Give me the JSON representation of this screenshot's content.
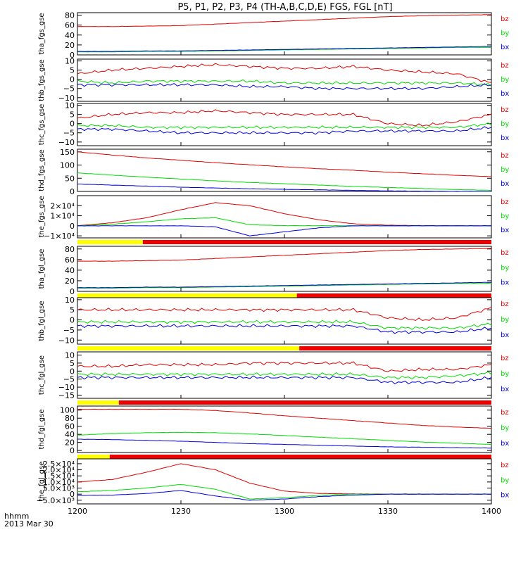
{
  "figure": {
    "title": "P5, P1, P2, P3, P4 (TH-A,B,C,D,E) FGS, FGL [nT]",
    "footer_label": "hhmm",
    "footer_date": "2013 Mar 30",
    "x_ticks": [
      "1200",
      "1230",
      "1300",
      "1330",
      "1400"
    ],
    "colors": {
      "bz": "#e00000",
      "by": "#00dd00",
      "bx": "#0000dd",
      "bar_yellow": "#ffff00",
      "bar_red": "#ee0000"
    }
  },
  "chart_data": [
    {
      "type": "line",
      "ylabel": "tha_fgs_gse",
      "yticks": [
        "80",
        "60",
        "40",
        "20",
        "0"
      ],
      "ylim": [
        0,
        85
      ],
      "x": [
        0,
        10,
        20,
        30,
        40,
        50,
        60,
        70,
        80,
        90,
        100,
        110,
        120
      ],
      "series": [
        {
          "name": "bz",
          "values": [
            57,
            57,
            58,
            59,
            62,
            65,
            68,
            71,
            74,
            77,
            79,
            80,
            81
          ]
        },
        {
          "name": "by",
          "values": [
            6,
            6,
            7,
            7,
            8,
            9,
            10,
            11,
            12,
            13,
            14,
            15,
            15
          ]
        },
        {
          "name": "bx",
          "values": [
            7,
            7,
            8,
            8,
            9,
            10,
            11,
            12,
            13,
            14,
            15,
            16,
            17
          ]
        }
      ],
      "legend": [
        "bz",
        "by",
        "bx"
      ]
    },
    {
      "type": "line",
      "ylabel": "thb_fgs_gse",
      "yticks": [
        "10",
        "5",
        "0",
        "−5",
        "−10"
      ],
      "ylim": [
        -12,
        11
      ],
      "x": [
        0,
        10,
        20,
        30,
        40,
        50,
        60,
        70,
        80,
        90,
        100,
        110,
        120
      ],
      "series": [
        {
          "name": "bz",
          "values": [
            3,
            5,
            6,
            7,
            8,
            7,
            6,
            6,
            7,
            5,
            4,
            3,
            -2
          ]
        },
        {
          "name": "by",
          "values": [
            -1,
            -2,
            -1,
            -1,
            -1,
            -1,
            -2,
            -2,
            -2,
            -2,
            -2,
            -2,
            -3
          ]
        },
        {
          "name": "bx",
          "values": [
            -3,
            -3,
            -3,
            -3,
            -3,
            -4,
            -4,
            -5,
            -5,
            -5,
            -5,
            -4,
            -3
          ]
        }
      ],
      "legend": [
        "bz",
        "by",
        "bx"
      ]
    },
    {
      "type": "line",
      "ylabel": "thc_fgs_gse",
      "yticks": [
        "10",
        "5",
        "0",
        "−5",
        "−10"
      ],
      "ylim": [
        -12,
        11
      ],
      "x": [
        0,
        10,
        20,
        30,
        40,
        50,
        60,
        70,
        80,
        90,
        100,
        110,
        120
      ],
      "series": [
        {
          "name": "bz",
          "values": [
            3,
            5,
            6,
            6,
            7,
            6,
            5,
            5,
            5,
            0,
            -1,
            1,
            5
          ]
        },
        {
          "name": "by",
          "values": [
            -1,
            -1,
            -2,
            -2,
            -2,
            -2,
            -2,
            -2,
            -2,
            -2,
            -2,
            -2,
            0
          ]
        },
        {
          "name": "bx",
          "values": [
            -3,
            -3,
            -4,
            -5,
            -5,
            -5,
            -5,
            -5,
            -4,
            -4,
            -4,
            -4,
            -2
          ]
        }
      ],
      "legend": [
        "bz",
        "by",
        "bx"
      ]
    },
    {
      "type": "line",
      "ylabel": "thd_fgs_gse",
      "yticks": [
        "150",
        "100",
        "50",
        "0"
      ],
      "ylim": [
        0,
        160
      ],
      "x": [
        0,
        10,
        20,
        30,
        40,
        50,
        60,
        70,
        80,
        90,
        100,
        110,
        120
      ],
      "series": [
        {
          "name": "bz",
          "values": [
            150,
            138,
            127,
            118,
            109,
            101,
            93,
            86,
            80,
            73,
            67,
            61,
            56
          ]
        },
        {
          "name": "by",
          "values": [
            70,
            62,
            54,
            47,
            40,
            34,
            29,
            24,
            19,
            15,
            11,
            7,
            4
          ]
        },
        {
          "name": "bx",
          "values": [
            28,
            24,
            20,
            16,
            13,
            10,
            8,
            6,
            4,
            2,
            1,
            0,
            -1
          ]
        }
      ],
      "legend": [
        "bz",
        "by",
        "bx"
      ]
    },
    {
      "type": "line",
      "ylabel": "the_fgs_gse",
      "yticks": [
        "2×10⁴",
        "1×10⁴",
        "0",
        "−1×10⁴"
      ],
      "ylim": [
        -12000,
        30000
      ],
      "x": [
        0,
        10,
        20,
        30,
        40,
        50,
        60,
        70,
        80,
        90,
        100,
        110,
        120
      ],
      "series": [
        {
          "name": "bz",
          "values": [
            100,
            3000,
            8000,
            16000,
            23000,
            20000,
            12000,
            6000,
            2000,
            600,
            200,
            100,
            50
          ]
        },
        {
          "name": "by",
          "values": [
            0,
            1500,
            4000,
            7000,
            8000,
            1000,
            200,
            100,
            100,
            50,
            50,
            50,
            50
          ]
        },
        {
          "name": "bx",
          "values": [
            0,
            0,
            0,
            0,
            -1000,
            -10000,
            -6000,
            -2000,
            0,
            0,
            0,
            0,
            0
          ]
        }
      ],
      "legend": [
        "bz",
        "by",
        "bx"
      ],
      "status_bar": {
        "yellow_until": 0.158
      }
    },
    {
      "type": "line",
      "ylabel": "tha_fgl_gse",
      "yticks": [
        "80",
        "60",
        "40",
        "20",
        "0"
      ],
      "ylim": [
        0,
        85
      ],
      "x": [
        0,
        10,
        20,
        30,
        40,
        50,
        60,
        70,
        80,
        90,
        100,
        110,
        120
      ],
      "series": [
        {
          "name": "bz",
          "values": [
            57,
            57,
            58,
            59,
            62,
            65,
            68,
            71,
            74,
            77,
            79,
            80,
            81
          ]
        },
        {
          "name": "by",
          "values": [
            6,
            6,
            7,
            7,
            8,
            9,
            10,
            11,
            12,
            13,
            14,
            15,
            15
          ]
        },
        {
          "name": "bx",
          "values": [
            7,
            7,
            8,
            8,
            9,
            10,
            11,
            12,
            13,
            14,
            15,
            16,
            17
          ]
        }
      ],
      "legend": [
        "bz",
        "by",
        "bx"
      ],
      "status_bar": {
        "yellow_until": 0.53
      }
    },
    {
      "type": "line",
      "ylabel": "thb_fgl_gse",
      "yticks": [
        "10",
        "5",
        "0",
        "−5",
        "−10"
      ],
      "ylim": [
        -12,
        11
      ],
      "x": [
        0,
        10,
        20,
        30,
        40,
        50,
        60,
        70,
        80,
        90,
        100,
        110,
        120
      ],
      "series": [
        {
          "name": "bz",
          "values": [
            5,
            5,
            5,
            5,
            5,
            5,
            5,
            5,
            5,
            1,
            0,
            1,
            6
          ]
        },
        {
          "name": "by",
          "values": [
            -1,
            -1,
            -1,
            -1,
            -1,
            -1,
            -1,
            -1,
            -1,
            -4,
            -4,
            -4,
            -2
          ]
        },
        {
          "name": "bx",
          "values": [
            -3,
            -3,
            -3,
            -3,
            -3,
            -3,
            -3,
            -3,
            -3,
            -6,
            -6,
            -6,
            -4
          ]
        }
      ],
      "legend": [
        "bz",
        "by",
        "bx"
      ],
      "status_bar": {
        "yellow_until": 0.536
      }
    },
    {
      "type": "line",
      "ylabel": "thc_fgl_gse",
      "yticks": [
        "10",
        "5",
        "0",
        "−5",
        "−10",
        "−15"
      ],
      "ylim": [
        -17,
        12
      ],
      "x": [
        0,
        10,
        20,
        30,
        40,
        50,
        60,
        70,
        80,
        90,
        100,
        110,
        120
      ],
      "series": [
        {
          "name": "bz",
          "values": [
            3,
            3,
            4,
            4,
            4,
            5,
            5,
            5,
            5,
            0,
            1,
            1,
            4
          ]
        },
        {
          "name": "by",
          "values": [
            -2,
            -2,
            -2,
            -2,
            -2,
            -2,
            -2,
            -2,
            -2,
            -4,
            -4,
            -3,
            -1
          ]
        },
        {
          "name": "bx",
          "values": [
            -4,
            -4,
            -4,
            -4,
            -4,
            -4,
            -4,
            -4,
            -4,
            -7,
            -7,
            -7,
            -4
          ]
        }
      ],
      "legend": [
        "bz",
        "by",
        "bx"
      ],
      "status_bar": {
        "yellow_until": 0.1
      }
    },
    {
      "type": "line",
      "ylabel": "thd_fgl_gse",
      "yticks": [
        "100",
        "80",
        "60",
        "40",
        "20",
        "0"
      ],
      "ylim": [
        -5,
        110
      ],
      "x": [
        0,
        10,
        20,
        30,
        40,
        50,
        60,
        70,
        80,
        90,
        100,
        110,
        120
      ],
      "series": [
        {
          "name": "bz",
          "values": [
            102,
            102,
            102,
            102,
            99,
            93,
            86,
            80,
            74,
            68,
            62,
            58,
            55
          ]
        },
        {
          "name": "by",
          "values": [
            38,
            42,
            44,
            45,
            44,
            41,
            37,
            33,
            29,
            25,
            21,
            18,
            15
          ]
        },
        {
          "name": "bx",
          "values": [
            28,
            27,
            25,
            23,
            20,
            17,
            15,
            13,
            11,
            9,
            8,
            7,
            6
          ]
        }
      ],
      "legend": [
        "bz",
        "by",
        "bx"
      ],
      "status_bar": {
        "yellow_until": 0.078
      }
    },
    {
      "type": "line",
      "ylabel": "the_fgl_gse",
      "yticks": [
        "2.5×10⁴",
        "2.0×10⁴",
        "1.5×10⁴",
        "1.0×10⁴",
        "5.0×10³",
        "0",
        "−5.0×10³"
      ],
      "ylim": [
        -8000,
        29000
      ],
      "x": [
        0,
        10,
        20,
        30,
        40,
        50,
        60,
        70,
        80,
        90,
        100,
        110,
        120
      ],
      "series": [
        {
          "name": "bz",
          "values": [
            10000,
            12000,
            18000,
            25000,
            20000,
            9000,
            2500,
            600,
            200,
            100,
            50,
            50,
            50
          ]
        },
        {
          "name": "by",
          "values": [
            2000,
            3000,
            5000,
            8000,
            4000,
            -4000,
            -3000,
            -1000,
            0,
            0,
            0,
            0,
            0
          ]
        },
        {
          "name": "bx",
          "values": [
            -1000,
            -800,
            500,
            3000,
            -1500,
            -5000,
            -4000,
            -2000,
            -800,
            0,
            0,
            0,
            0
          ]
        }
      ],
      "legend": [
        "bz",
        "by",
        "bx"
      ]
    }
  ]
}
